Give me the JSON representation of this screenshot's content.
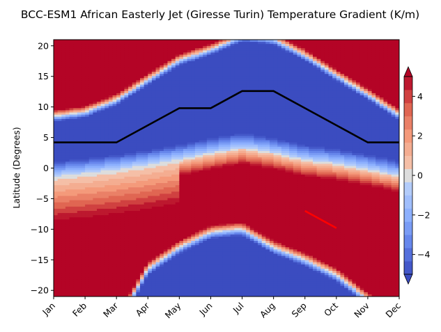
{
  "chart_data": {
    "type": "heatmap",
    "title": "BCC-ESM1 African Easterly Jet (Giresse Turin) Temperature Gradient (K/m)",
    "xlabel": "",
    "ylabel": "Latitude (Degrees)",
    "categories": [
      "Jan",
      "Feb",
      "Mar",
      "Apr",
      "May",
      "Jun",
      "Jul",
      "Aug",
      "Sep",
      "Oct",
      "Nov",
      "Dec"
    ],
    "xlim": [
      0,
      11
    ],
    "ylim": [
      -21,
      21
    ],
    "yticks": [
      -20,
      -15,
      -10,
      -5,
      0,
      5,
      10,
      15,
      20
    ],
    "colorbar": {
      "range": [
        -5,
        5
      ],
      "ticks": [
        -4,
        -2,
        0,
        2,
        4
      ],
      "extend": "both",
      "levels": 15
    },
    "fields": {
      "upper_negative_band_top": [
        7.6,
        8.3,
        10.3,
        13.6,
        16.8,
        18.5,
        20.7,
        20.2,
        17.6,
        14.3,
        11.2,
        7.8
      ],
      "zero_crossing_latitude": [
        -1.5,
        -1.0,
        -0.4,
        0.4,
        1.3,
        2.3,
        3.2,
        2.4,
        1.2,
        0.6,
        -0.3,
        -1.4
      ],
      "southern_negative_band_top": [
        -25,
        -25,
        -25,
        -16,
        -12.5,
        -10,
        -9.5,
        -12.5,
        -14.5,
        -17,
        -21,
        -25
      ]
    },
    "series": [
      {
        "name": "",
        "color": "#000000",
        "x": [
          0,
          1,
          2,
          3,
          4,
          5,
          6,
          7,
          8,
          9,
          10,
          11
        ],
        "y": [
          4.2,
          4.2,
          4.2,
          7.0,
          9.8,
          9.8,
          12.6,
          12.6,
          9.8,
          7.0,
          4.2,
          4.2
        ]
      },
      {
        "name": "",
        "color": "#ff0000",
        "x": [
          8,
          9
        ],
        "y": [
          -7.0,
          -9.8
        ]
      }
    ]
  }
}
